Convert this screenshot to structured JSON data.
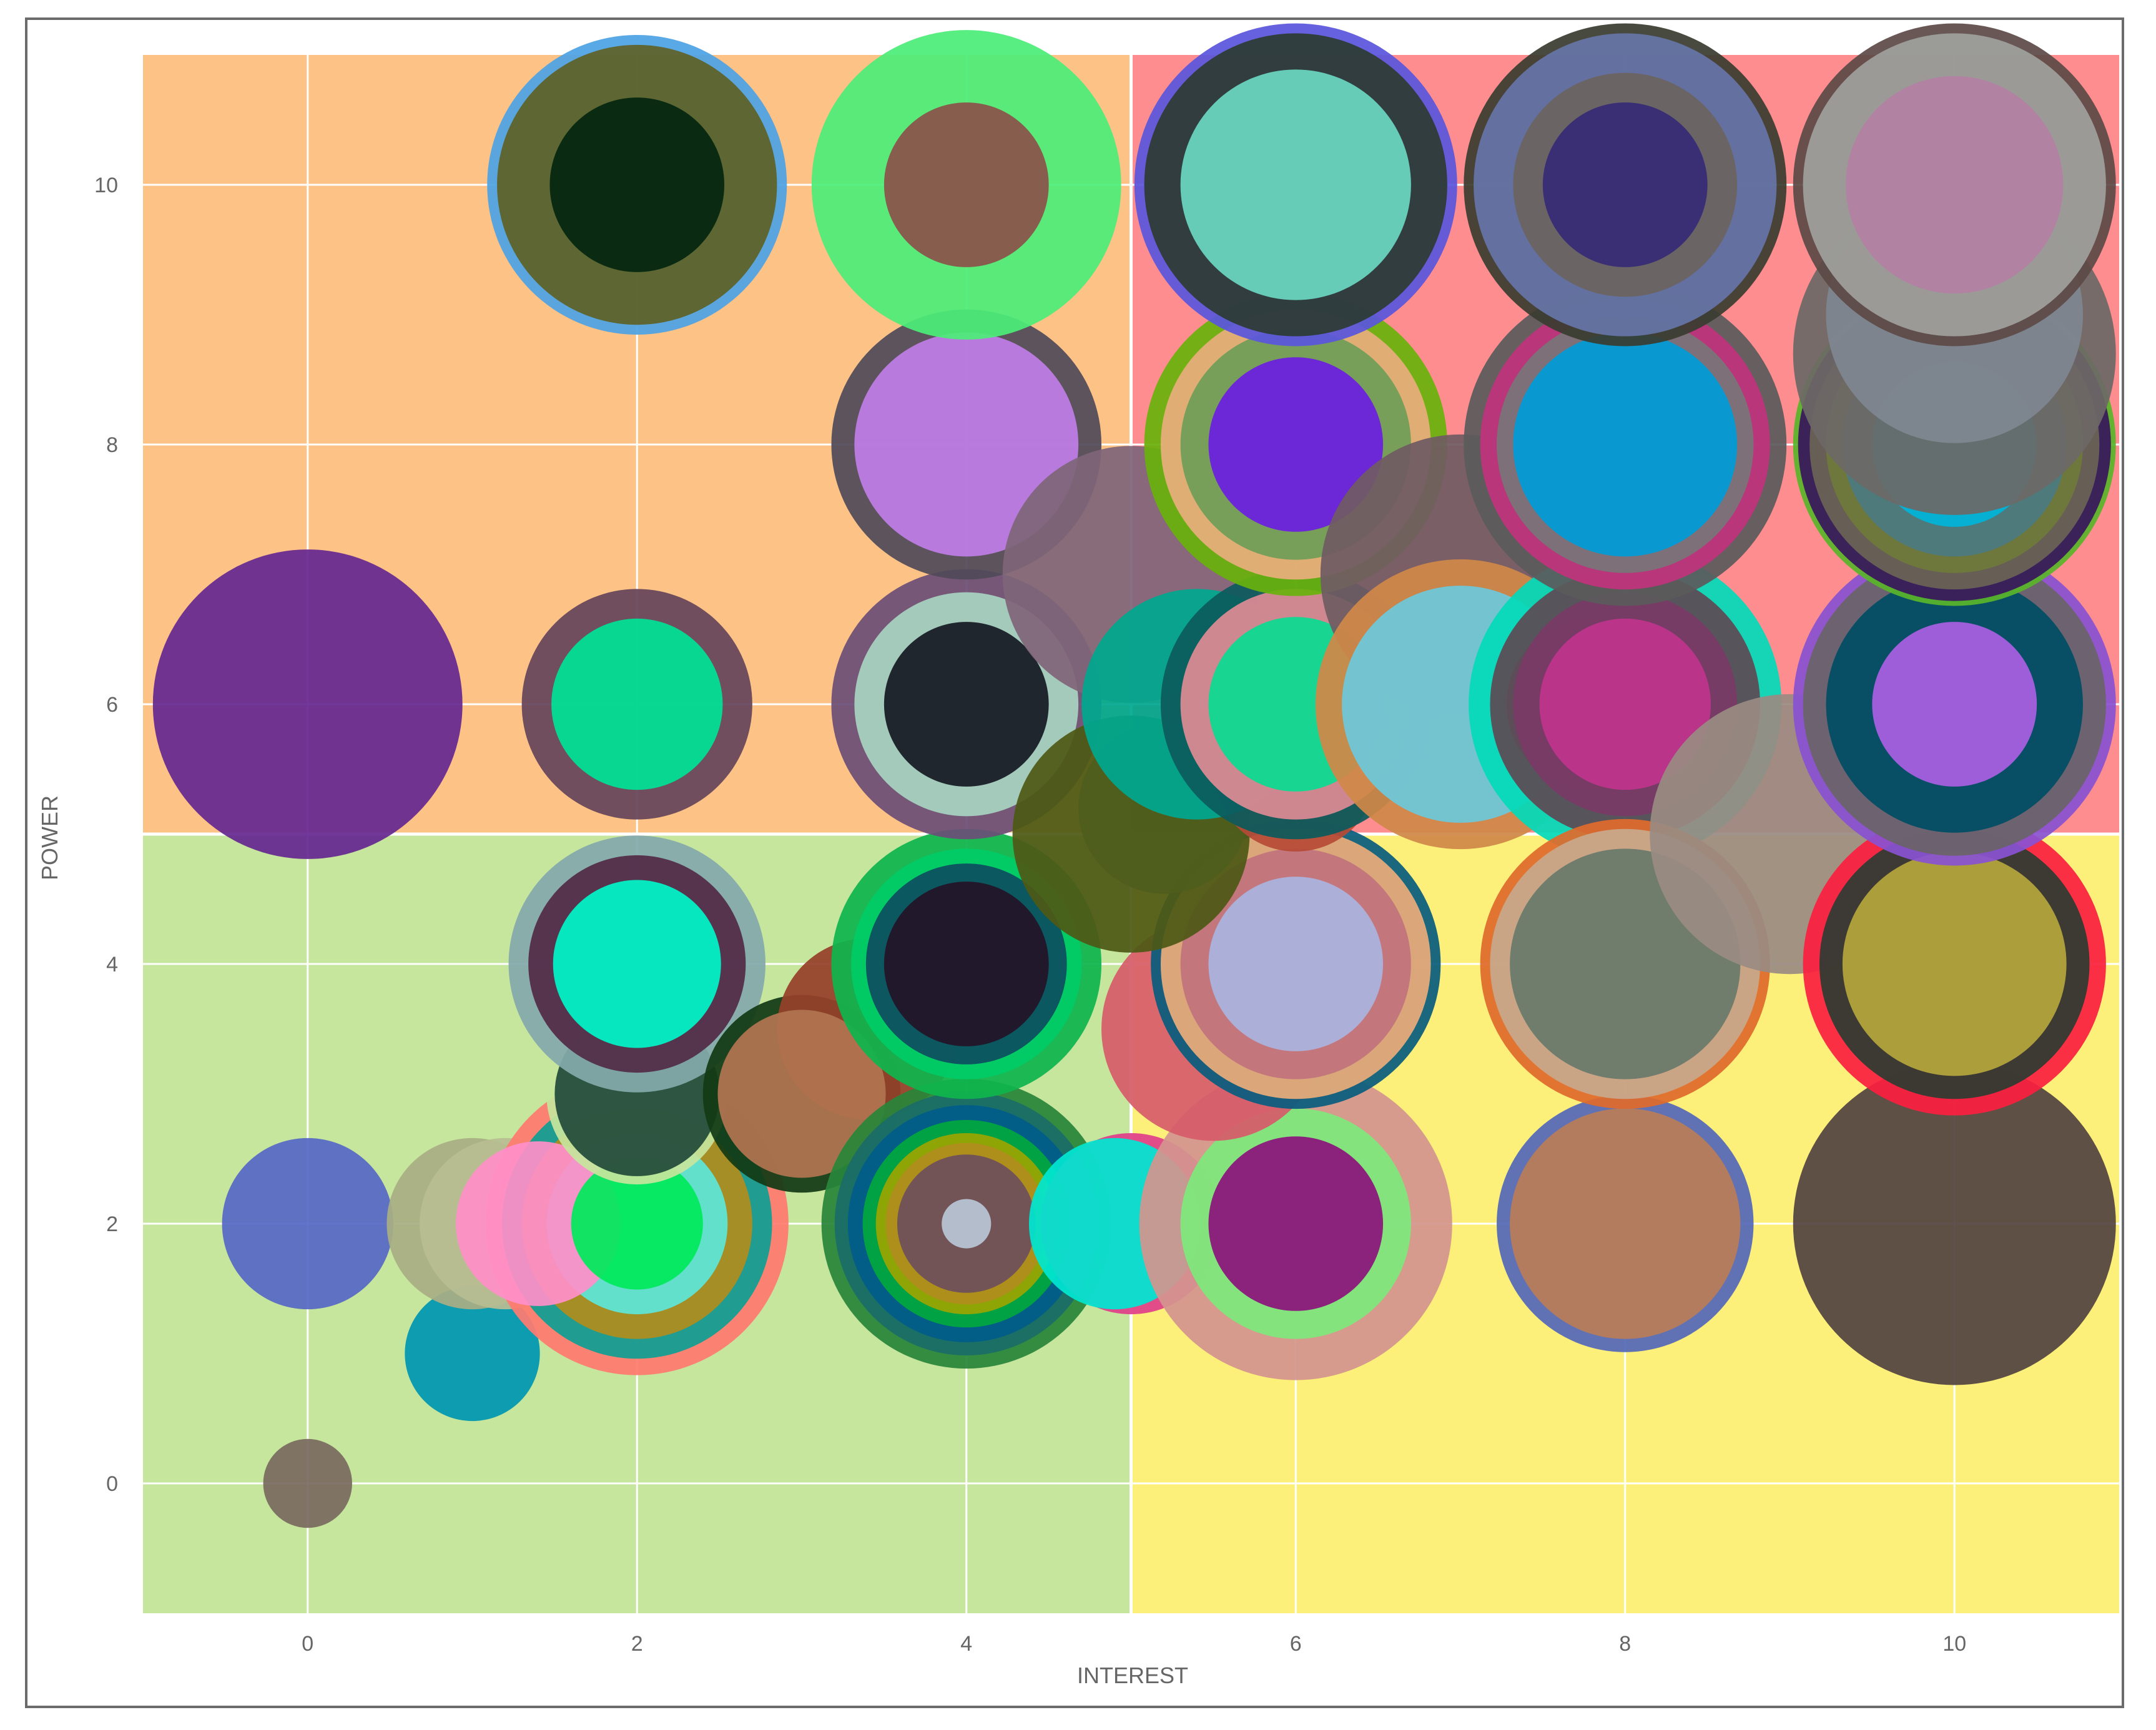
{
  "chart_data": {
    "type": "scatter",
    "subtype": "bubble",
    "title": "",
    "xlabel": "INTEREST",
    "ylabel": "POWER",
    "xlim": [
      -1,
      11
    ],
    "ylim": [
      -1,
      11
    ],
    "x_ticks": [
      "0",
      "2",
      "4",
      "6",
      "8",
      "10"
    ],
    "y_ticks": [
      "0",
      "2",
      "4",
      "6",
      "8",
      "10"
    ],
    "grid": true,
    "legend": "none",
    "quadrants": [
      {
        "x": [
          -1,
          5
        ],
        "y": [
          5,
          11
        ],
        "color": "#fdc285"
      },
      {
        "x": [
          5,
          11
        ],
        "y": [
          5,
          11
        ],
        "color": "#fe8d90"
      },
      {
        "x": [
          -1,
          5
        ],
        "y": [
          -1,
          5
        ],
        "color": "#c6e59d"
      },
      {
        "x": [
          5,
          11
        ],
        "y": [
          -1,
          5
        ],
        "color": "#fcf07a"
      }
    ],
    "points": [
      {
        "x": 0,
        "y": 0,
        "r": 0.27,
        "color": "#7a6a60"
      },
      {
        "x": 1,
        "y": 1,
        "r": 0.41,
        "color": "#0097b2"
      },
      {
        "x": 0,
        "y": 2,
        "r": 0.52,
        "color": "#5668c5"
      },
      {
        "x": 1,
        "y": 2,
        "r": 0.52,
        "color": "#a9ae83"
      },
      {
        "x": 1.2,
        "y": 2,
        "r": 0.52,
        "color": "#b8bd92"
      },
      {
        "x": 2,
        "y": 2,
        "r": 0.92,
        "color": "#ff7b70"
      },
      {
        "x": 2,
        "y": 2,
        "r": 0.82,
        "color": "#109e92"
      },
      {
        "x": 2,
        "y": 2,
        "r": 0.7,
        "color": "#b08d1e"
      },
      {
        "x": 2,
        "y": 2,
        "r": 0.55,
        "color": "#5ee6d9"
      },
      {
        "x": 1.4,
        "y": 2,
        "r": 0.5,
        "color": "#ff8fc8"
      },
      {
        "x": 2,
        "y": 2,
        "r": 0.4,
        "color": "#00e85a"
      },
      {
        "x": 2,
        "y": 3,
        "r": 0.55,
        "color": "#c6e59d"
      },
      {
        "x": 2,
        "y": 3,
        "r": 0.5,
        "color": "#224a3a"
      },
      {
        "x": 2,
        "y": 4,
        "r": 0.78,
        "color": "#83a9ab"
      },
      {
        "x": 2,
        "y": 4,
        "r": 0.66,
        "color": "#522b47"
      },
      {
        "x": 2,
        "y": 4,
        "r": 0.51,
        "color": "#00f5c8"
      },
      {
        "x": 3,
        "y": 3,
        "r": 0.6,
        "color": "#123a14"
      },
      {
        "x": 3.4,
        "y": 3.5,
        "r": 0.55,
        "color": "#96412a"
      },
      {
        "x": 3,
        "y": 3,
        "r": 0.51,
        "color": "#b27451"
      },
      {
        "x": 4,
        "y": 2,
        "r": 0.88,
        "color": "#29853a"
      },
      {
        "x": 4,
        "y": 2,
        "r": 0.8,
        "color": "#1b6d68"
      },
      {
        "x": 4,
        "y": 2,
        "r": 0.72,
        "color": "#005c8a"
      },
      {
        "x": 4,
        "y": 2,
        "r": 0.63,
        "color": "#00a83e"
      },
      {
        "x": 4,
        "y": 2,
        "r": 0.55,
        "color": "#99a500"
      },
      {
        "x": 4,
        "y": 2,
        "r": 0.49,
        "color": "#b08d1e"
      },
      {
        "x": 4,
        "y": 2,
        "r": 0.42,
        "color": "#6e505a"
      },
      {
        "x": 4,
        "y": 2,
        "r": 0.15,
        "color": "#b8c5d4"
      },
      {
        "x": 4,
        "y": 4,
        "r": 0.82,
        "color": "#0fb54e"
      },
      {
        "x": 4,
        "y": 4,
        "r": 0.7,
        "color": "#00cc66"
      },
      {
        "x": 4,
        "y": 4,
        "r": 0.61,
        "color": "#0d4f60"
      },
      {
        "x": 4,
        "y": 4,
        "r": 0.5,
        "color": "#241328"
      },
      {
        "x": 4,
        "y": 6,
        "r": 0.82,
        "color": "#6c4f77"
      },
      {
        "x": 4,
        "y": 6,
        "r": 0.68,
        "color": "#a8d3c1"
      },
      {
        "x": 4,
        "y": 6,
        "r": 0.5,
        "color": "#161a22"
      },
      {
        "x": 4,
        "y": 8,
        "r": 0.82,
        "color": "#514a59"
      },
      {
        "x": 4,
        "y": 8,
        "r": 0.68,
        "color": "#bf7ee7"
      },
      {
        "x": 4,
        "y": 10,
        "r": 0.94,
        "color": "#4ced78"
      },
      {
        "x": 4,
        "y": 10,
        "r": 0.5,
        "color": "#8b524b"
      },
      {
        "x": 2,
        "y": 10,
        "r": 0.91,
        "color": "#4ea2e5"
      },
      {
        "x": 2,
        "y": 10,
        "r": 0.85,
        "color": "#5f6227"
      },
      {
        "x": 2,
        "y": 10,
        "r": 0.53,
        "color": "#04270f"
      },
      {
        "x": 2,
        "y": 6,
        "r": 0.7,
        "color": "#65455a"
      },
      {
        "x": 2,
        "y": 6,
        "r": 0.52,
        "color": "#00e296"
      },
      {
        "x": 0,
        "y": 6,
        "r": 0.94,
        "color": "#662891"
      },
      {
        "x": 5,
        "y": 2,
        "r": 0.55,
        "color": "#e0408a"
      },
      {
        "x": 4.9,
        "y": 2,
        "r": 0.52,
        "color": "#00e6d1"
      },
      {
        "x": 6,
        "y": 2,
        "r": 0.95,
        "color": "#d3958e"
      },
      {
        "x": 6,
        "y": 2,
        "r": 0.7,
        "color": "#7ee87c"
      },
      {
        "x": 6,
        "y": 2,
        "r": 0.53,
        "color": "#8c137b"
      },
      {
        "x": 5.5,
        "y": 3.5,
        "r": 0.68,
        "color": "#d65d6a"
      },
      {
        "x": 6,
        "y": 4,
        "r": 0.88,
        "color": "#0a5c7e"
      },
      {
        "x": 6,
        "y": 4,
        "r": 0.82,
        "color": "#e9ac7a"
      },
      {
        "x": 6,
        "y": 4,
        "r": 0.7,
        "color": "#c1737d"
      },
      {
        "x": 6,
        "y": 4,
        "r": 0.53,
        "color": "#aab4df"
      },
      {
        "x": 5,
        "y": 5,
        "r": 0.72,
        "color": "#4d5916"
      },
      {
        "x": 5.2,
        "y": 5.2,
        "r": 0.52,
        "color": "#4f5e1c"
      },
      {
        "x": 6,
        "y": 5.5,
        "r": 0.5,
        "color": "#b64a36"
      },
      {
        "x": 5,
        "y": 7,
        "r": 0.78,
        "color": "#7f6579"
      },
      {
        "x": 5.4,
        "y": 6,
        "r": 0.7,
        "color": "#00a88f"
      },
      {
        "x": 6,
        "y": 6,
        "r": 0.82,
        "color": "#0c5a5d"
      },
      {
        "x": 6,
        "y": 6,
        "r": 0.7,
        "color": "#dd8b93"
      },
      {
        "x": 6,
        "y": 6,
        "r": 0.53,
        "color": "#0adc92"
      },
      {
        "x": 6,
        "y": 8,
        "r": 0.92,
        "color": "#68b20c"
      },
      {
        "x": 6,
        "y": 8,
        "r": 0.82,
        "color": "#e8ae7c"
      },
      {
        "x": 6,
        "y": 8,
        "r": 0.7,
        "color": "#6f9e57"
      },
      {
        "x": 6,
        "y": 8,
        "r": 0.53,
        "color": "#6c1ee0"
      },
      {
        "x": 6,
        "y": 10,
        "r": 0.98,
        "color": "#5a56dd"
      },
      {
        "x": 6,
        "y": 10,
        "r": 0.92,
        "color": "#2d3b33"
      },
      {
        "x": 6,
        "y": 10,
        "r": 0.7,
        "color": "#6ad6c1"
      },
      {
        "x": 7,
        "y": 7,
        "r": 0.85,
        "color": "#705b63"
      },
      {
        "x": 7,
        "y": 6,
        "r": 0.88,
        "color": "#d08848"
      },
      {
        "x": 7,
        "y": 6,
        "r": 0.72,
        "color": "#6dc8da"
      },
      {
        "x": 8,
        "y": 6,
        "r": 0.95,
        "color": "#04d9b9"
      },
      {
        "x": 7.8,
        "y": 6,
        "r": 0.52,
        "color": "#5e7177"
      },
      {
        "x": 8,
        "y": 6,
        "r": 0.82,
        "color": "#5e4a55"
      },
      {
        "x": 8,
        "y": 6,
        "r": 0.68,
        "color": "#7a3a66"
      },
      {
        "x": 8,
        "y": 6,
        "r": 0.52,
        "color": "#c0358d"
      },
      {
        "x": 8,
        "y": 8,
        "r": 0.98,
        "color": "#5b5a5b"
      },
      {
        "x": 8,
        "y": 8,
        "r": 0.88,
        "color": "#c0347c"
      },
      {
        "x": 8,
        "y": 8,
        "r": 0.78,
        "color": "#7a7478"
      },
      {
        "x": 8,
        "y": 8,
        "r": 0.68,
        "color": "#009bd6"
      },
      {
        "x": 8,
        "y": 10,
        "r": 0.98,
        "color": "#3a3c30"
      },
      {
        "x": 8,
        "y": 10,
        "r": 0.92,
        "color": "#6675a8"
      },
      {
        "x": 8,
        "y": 10,
        "r": 0.68,
        "color": "#6b6361"
      },
      {
        "x": 8,
        "y": 10,
        "r": 0.5,
        "color": "#372a75"
      },
      {
        "x": 8,
        "y": 2,
        "r": 0.78,
        "color": "#5468b8"
      },
      {
        "x": 8,
        "y": 2,
        "r": 0.7,
        "color": "#b97d57"
      },
      {
        "x": 8,
        "y": 4,
        "r": 0.88,
        "color": "#e06a2c"
      },
      {
        "x": 8,
        "y": 4,
        "r": 0.82,
        "color": "#c8a98c"
      },
      {
        "x": 8,
        "y": 4,
        "r": 0.7,
        "color": "#6b7a6a"
      },
      {
        "x": 9,
        "y": 5,
        "r": 0.85,
        "color": "#9a8b82"
      },
      {
        "x": 10,
        "y": 2,
        "r": 0.98,
        "color": "#524441"
      },
      {
        "x": 10,
        "y": 4,
        "r": 0.92,
        "color": "#fb2040"
      },
      {
        "x": 10,
        "y": 4,
        "r": 0.82,
        "color": "#2e3b33"
      },
      {
        "x": 10,
        "y": 4,
        "r": 0.68,
        "color": "#b5a63c"
      },
      {
        "x": 10,
        "y": 6,
        "r": 0.98,
        "color": "#8a52d1"
      },
      {
        "x": 10,
        "y": 6,
        "r": 0.92,
        "color": "#6b6468"
      },
      {
        "x": 10,
        "y": 6,
        "r": 0.78,
        "color": "#004e64"
      },
      {
        "x": 10,
        "y": 6,
        "r": 0.5,
        "color": "#aa60e3"
      },
      {
        "x": 10,
        "y": 8,
        "r": 0.98,
        "color": "#59b52a"
      },
      {
        "x": 10,
        "y": 8,
        "r": 0.95,
        "color": "#38175c"
      },
      {
        "x": 10,
        "y": 8,
        "r": 0.88,
        "color": "#6b6355"
      },
      {
        "x": 10,
        "y": 8,
        "r": 0.78,
        "color": "#707b3a"
      },
      {
        "x": 10,
        "y": 8,
        "r": 0.68,
        "color": "#4c7b80"
      },
      {
        "x": 10,
        "y": 8,
        "r": 0.5,
        "color": "#00b4d9"
      },
      {
        "x": 10,
        "y": 8.7,
        "r": 0.98,
        "color": "#6d6866"
      },
      {
        "x": 10,
        "y": 9,
        "r": 0.78,
        "color": "#7f8791"
      },
      {
        "x": 10,
        "y": 10,
        "r": 0.98,
        "color": "#5c4a47"
      },
      {
        "x": 10,
        "y": 10,
        "r": 0.92,
        "color": "#9fa09d"
      },
      {
        "x": 10,
        "y": 10,
        "r": 0.66,
        "color": "#b480a2"
      }
    ]
  }
}
